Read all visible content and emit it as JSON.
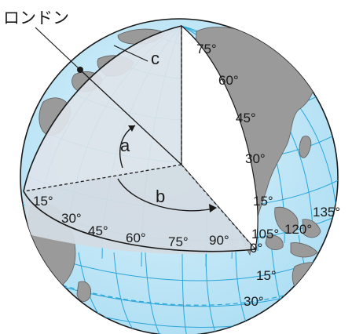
{
  "city_label": "ロンドン",
  "letters": {
    "a": "a",
    "b": "b",
    "c": "c"
  },
  "latitude_labels_meridian": [
    "75°",
    "60°",
    "45°",
    "30°",
    "15°"
  ],
  "equator_labels_on_cut": [
    "15°",
    "30°",
    "45°",
    "60°",
    "75°",
    "90°"
  ],
  "equator_labels_outside": [
    "0°",
    "105°",
    "120°",
    "135°"
  ],
  "south_latitude_labels": [
    "15°",
    "30°"
  ],
  "colors": {
    "ocean": "#bfe6f7",
    "grid": "#2aa6d9",
    "land": "#9a9a9a",
    "cut_face": "#dde4ea",
    "cut_face_lower": "#d3dbe3",
    "outline": "#1a1a1a"
  }
}
